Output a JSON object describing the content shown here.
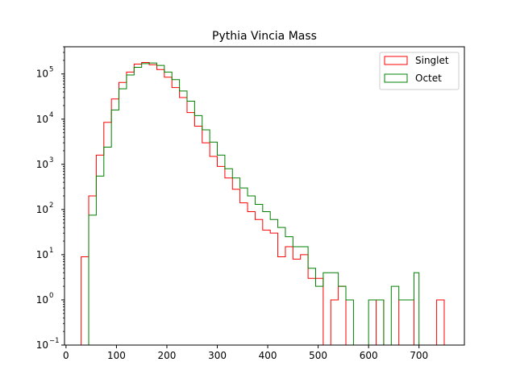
{
  "chart_data": {
    "type": "histogram",
    "title": "Pythia Vincia Mass",
    "xlabel": "",
    "ylabel": "",
    "x_scale": "linear",
    "y_scale": "log",
    "xlim": [
      -3,
      790
    ],
    "ylim": [
      0.1,
      400000
    ],
    "x_ticks": [
      {
        "value": 0,
        "label": "0"
      },
      {
        "value": 100,
        "label": "100"
      },
      {
        "value": 200,
        "label": "200"
      },
      {
        "value": 300,
        "label": "300"
      },
      {
        "value": 400,
        "label": "400"
      },
      {
        "value": 500,
        "label": "500"
      },
      {
        "value": 600,
        "label": "600"
      },
      {
        "value": 700,
        "label": "700"
      }
    ],
    "y_ticks": [
      {
        "value": 0.1,
        "label": "10",
        "exp": "−1"
      },
      {
        "value": 1,
        "label": "10",
        "exp": "0"
      },
      {
        "value": 10,
        "label": "10",
        "exp": "1"
      },
      {
        "value": 100,
        "label": "10",
        "exp": "2"
      },
      {
        "value": 1000,
        "label": "10",
        "exp": "3"
      },
      {
        "value": 10000,
        "label": "10",
        "exp": "4"
      },
      {
        "value": 100000,
        "label": "10",
        "exp": "5"
      }
    ],
    "grid": false,
    "legend": {
      "position": "top-right"
    },
    "bins": [
      30,
      45,
      60,
      75,
      90,
      105,
      120,
      135,
      150,
      165,
      180,
      195,
      210,
      225,
      240,
      255,
      270,
      285,
      300,
      315,
      330,
      345,
      360,
      375,
      390,
      405,
      420,
      435,
      450,
      465,
      480,
      495,
      510,
      525,
      540,
      555,
      570,
      585,
      600,
      615,
      630,
      645,
      660,
      675,
      690,
      705,
      720,
      735,
      750,
      765
    ],
    "series": [
      {
        "name": "Singlet",
        "color": "#ff0000",
        "counts": [
          9,
          200,
          1600,
          8500,
          28000,
          65000,
          110000,
          165000,
          180000,
          160000,
          125000,
          85000,
          50000,
          30000,
          14000,
          7000,
          3000,
          1500,
          900,
          500,
          280,
          140,
          90,
          60,
          35,
          30,
          9,
          15,
          8,
          10,
          3,
          3,
          0,
          1,
          2,
          0,
          0,
          0,
          0,
          1,
          0,
          0,
          1,
          1,
          0,
          0,
          0,
          1,
          0,
          0
        ],
        "x_start": 30,
        "x_end": 756
      },
      {
        "name": "Octet",
        "color": "#008000",
        "counts": [
          0,
          75,
          550,
          2400,
          16000,
          47000,
          95000,
          140000,
          170000,
          175000,
          155000,
          110000,
          75000,
          42000,
          25000,
          12000,
          5800,
          3100,
          1600,
          800,
          500,
          300,
          200,
          130,
          90,
          60,
          40,
          25,
          15,
          15,
          5,
          2,
          4,
          4,
          2,
          1,
          0,
          0,
          1,
          1,
          0,
          2,
          1,
          1,
          4,
          0,
          0,
          0,
          0,
          0
        ],
        "x_start": 40,
        "x_end": 700
      }
    ]
  }
}
